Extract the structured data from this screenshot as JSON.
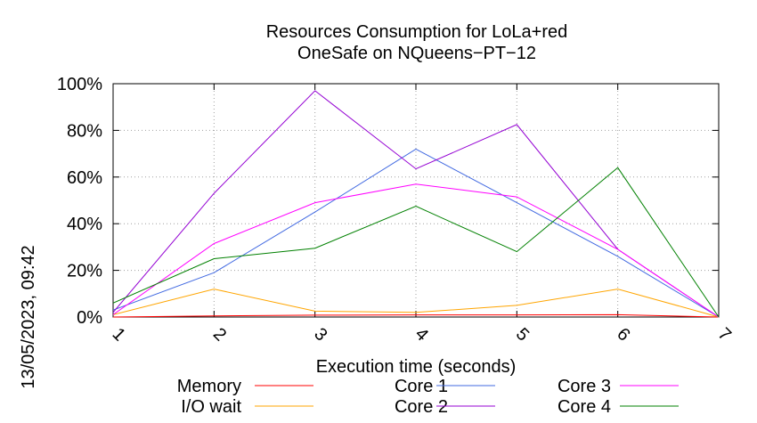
{
  "chart_data": {
    "type": "line",
    "title": [
      "Resources Consumption for LoLa+red",
      "OneSafe on NQueens−PT−12"
    ],
    "xlabel": "Execution time (seconds)",
    "ylabel": "",
    "side_label": "13/05/2023, 09:42",
    "xlim": [
      1,
      7
    ],
    "ylim": [
      0,
      100
    ],
    "x_ticks": [
      1,
      2,
      3,
      4,
      5,
      6,
      7
    ],
    "x_tick_labels": [
      "1",
      "2",
      "3",
      "4",
      "5",
      "6",
      "7"
    ],
    "y_ticks": [
      0,
      20,
      40,
      60,
      80,
      100
    ],
    "y_tick_labels": [
      "0%",
      "20%",
      "40%",
      "60%",
      "80%",
      "100%"
    ],
    "grid": true,
    "legend_position": "bottom",
    "series": [
      {
        "name": "Memory",
        "color": "#ff0000",
        "x": [
          1,
          2,
          3,
          4,
          5,
          6,
          7
        ],
        "y": [
          0,
          0.5,
          0.8,
          0.9,
          0.9,
          1.0,
          0
        ]
      },
      {
        "name": "I/O wait",
        "color": "#ffa500",
        "x": [
          1,
          2,
          3,
          4,
          5,
          6,
          7
        ],
        "y": [
          1,
          12,
          2.5,
          2,
          5,
          12,
          0
        ]
      },
      {
        "name": "Core 1",
        "color": "#4169e1",
        "x": [
          1,
          2,
          3,
          4,
          5,
          6,
          7
        ],
        "y": [
          3,
          19,
          45,
          72,
          49,
          26,
          0
        ]
      },
      {
        "name": "Core 2",
        "color": "#9400d3",
        "x": [
          1,
          2,
          3,
          4,
          5,
          6,
          7
        ],
        "y": [
          2,
          53,
          97,
          63.5,
          82.5,
          29,
          0
        ]
      },
      {
        "name": "Core 3",
        "color": "#ff00ff",
        "x": [
          1,
          2,
          3,
          4,
          5,
          6,
          7
        ],
        "y": [
          1,
          31.5,
          49,
          57,
          51.5,
          29,
          0
        ]
      },
      {
        "name": "Core 4",
        "color": "#008000",
        "x": [
          1,
          2,
          3,
          4,
          5,
          6,
          7
        ],
        "y": [
          6,
          25,
          29.5,
          47.5,
          28,
          64,
          0
        ]
      }
    ]
  }
}
